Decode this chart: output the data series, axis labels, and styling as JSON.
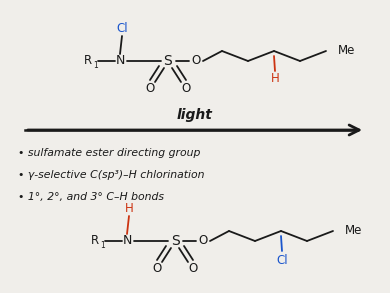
{
  "bg_color": "#f0eeea",
  "black": "#1a1a1a",
  "blue": "#1a55cc",
  "red": "#cc3311",
  "light_label": "light",
  "bullet_lines": [
    "• sulfamate ester directing group",
    "• γ-selective C(sp³)–H chlorination",
    "• 1°, 2°, and 3° C–H bonds"
  ]
}
